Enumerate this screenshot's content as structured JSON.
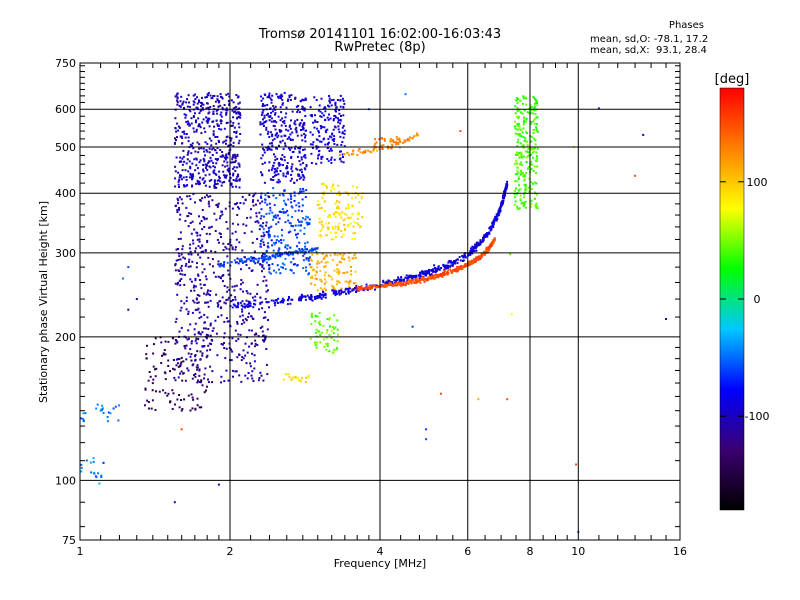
{
  "header": {
    "title_line1": "Tromsø 20141101 16:02:00-16:03:43",
    "title_line2": "RwPretec (8p)",
    "stats_title": "Phases",
    "stats_line1": "mean, sd,O: -78.1, 17.2",
    "stats_line2": "mean, sd,X:  93.1, 28.4"
  },
  "colorbar": {
    "unit": "[deg]",
    "ticks": [
      {
        "value": 100,
        "label": "100"
      },
      {
        "value": 0,
        "label": "0"
      },
      {
        "value": -100,
        "label": "-100"
      }
    ],
    "range": [
      -180,
      180
    ],
    "stops": [
      "#000000",
      "#3a0070",
      "#0000ff",
      "#00c8ff",
      "#00ff00",
      "#ffff00",
      "#ff8000",
      "#ff0000"
    ]
  },
  "chart_data": {
    "type": "scatter",
    "title": "Tromsø 20141101 16:02:00-16:03:43",
    "subtitle": "RwPretec (8p)",
    "xlabel": "Frequency [MHz]",
    "ylabel": "Stationary phase Virtual Height [km]",
    "x_scale": "log",
    "y_scale": "log",
    "xlim": [
      1,
      16
    ],
    "ylim": [
      75,
      750
    ],
    "x_ticks": [
      {
        "value": 1,
        "label": "1"
      },
      {
        "value": 2,
        "label": "2"
      },
      {
        "value": 4,
        "label": "4"
      },
      {
        "value": 6,
        "label": "6"
      },
      {
        "value": 8,
        "label": "8"
      },
      {
        "value": 10,
        "label": "10"
      },
      {
        "value": 16,
        "label": "16"
      }
    ],
    "y_ticks": [
      {
        "value": 750,
        "label": "750"
      },
      {
        "value": 600,
        "label": "600"
      },
      {
        "value": 500,
        "label": "500"
      },
      {
        "value": 400,
        "label": "400"
      },
      {
        "value": 300,
        "label": "300"
      },
      {
        "value": 200,
        "label": "200"
      },
      {
        "value": 100,
        "label": "100"
      },
      {
        "value": 75,
        "label": "75"
      }
    ],
    "grid": true,
    "color_variable": "phase [deg]",
    "clusters": [
      {
        "f": [
          1.55,
          2.1
        ],
        "h": [
          410,
          650
        ],
        "phase": -100,
        "n": 500
      },
      {
        "f": [
          2.3,
          2.85
        ],
        "h": [
          420,
          650
        ],
        "phase": -95,
        "n": 320
      },
      {
        "f": [
          2.9,
          3.4
        ],
        "h": [
          460,
          640
        ],
        "phase": -90,
        "n": 160
      },
      {
        "f": [
          1.55,
          2.4
        ],
        "h": [
          160,
          400
        ],
        "phase": -110,
        "n": 620
      },
      {
        "f": [
          1.35,
          1.8
        ],
        "h": [
          140,
          200
        ],
        "phase": -140,
        "n": 110
      },
      {
        "f": [
          2.3,
          2.9
        ],
        "h": [
          270,
          410
        ],
        "phase": -60,
        "n": 220
      },
      {
        "f": [
          3.0,
          3.7
        ],
        "h": [
          320,
          420
        ],
        "phase": 90,
        "n": 130
      },
      {
        "f": [
          2.9,
          3.6
        ],
        "h": [
          250,
          300
        ],
        "phase": 110,
        "n": 110
      },
      {
        "f": [
          2.9,
          3.3
        ],
        "h": [
          185,
          225
        ],
        "phase": 45,
        "n": 60
      },
      {
        "f": [
          2.55,
          2.9
        ],
        "h": [
          160,
          168
        ],
        "phase": 95,
        "n": 20
      },
      {
        "f": [
          7.45,
          8.3
        ],
        "h": [
          370,
          640
        ],
        "phase": 40,
        "n": 260
      },
      {
        "f": [
          3.9,
          4.4
        ],
        "h": [
          495,
          525
        ],
        "phase": 130,
        "n": 25
      },
      {
        "f": [
          1.0,
          1.12
        ],
        "h": [
          98,
          112
        ],
        "phase": -45,
        "n": 18
      },
      {
        "f": [
          1.0,
          1.2
        ],
        "h": [
          133,
          145
        ],
        "phase": -45,
        "n": 22
      }
    ],
    "traces": [
      {
        "f": [
          2.0,
          2.5,
          3.0,
          3.5,
          4.0,
          4.5,
          5.0,
          5.5,
          6.0,
          6.3,
          6.6,
          6.9,
          7.05,
          7.2
        ],
        "h": [
          232,
          237,
          243,
          250,
          257,
          265,
          273,
          283,
          298,
          312,
          332,
          360,
          385,
          420
        ],
        "phase": -90,
        "n": 600,
        "spread": 0.025
      },
      {
        "f": [
          3.6,
          4.0,
          4.5,
          5.0,
          5.5,
          6.0,
          6.3,
          6.6,
          6.8
        ],
        "h": [
          252,
          255,
          259,
          265,
          273,
          283,
          292,
          305,
          320
        ],
        "phase": 150,
        "n": 450,
        "spread": 0.015
      },
      {
        "f": [
          1.9,
          2.3,
          2.7,
          3.0
        ],
        "h": [
          283,
          292,
          300,
          305
        ],
        "phase": -60,
        "n": 100,
        "spread": 0.02
      },
      {
        "f": [
          3.2,
          3.8,
          4.3,
          4.8
        ],
        "h": [
          480,
          492,
          505,
          530
        ],
        "phase": 125,
        "n": 60,
        "spread": 0.02
      }
    ],
    "scattered": [
      {
        "f": 1.55,
        "h": 90,
        "phase": -100
      },
      {
        "f": 1.9,
        "h": 98,
        "phase": -100
      },
      {
        "f": 1.6,
        "h": 128,
        "phase": 150
      },
      {
        "f": 4.95,
        "h": 122,
        "phase": -60
      },
      {
        "f": 4.95,
        "h": 128,
        "phase": -60
      },
      {
        "f": 9.9,
        "h": 108,
        "phase": 150
      },
      {
        "f": 10.0,
        "h": 78,
        "phase": -60
      },
      {
        "f": 15.0,
        "h": 218,
        "phase": -110
      },
      {
        "f": 13.5,
        "h": 530,
        "phase": -100
      },
      {
        "f": 11.0,
        "h": 602,
        "phase": -100
      },
      {
        "f": 13.0,
        "h": 435,
        "phase": 150
      },
      {
        "f": 7.3,
        "h": 298,
        "phase": 40
      },
      {
        "f": 7.35,
        "h": 223,
        "phase": 80
      },
      {
        "f": 7.2,
        "h": 148,
        "phase": 150
      },
      {
        "f": 4.65,
        "h": 210,
        "phase": -60
      },
      {
        "f": 5.3,
        "h": 152,
        "phase": 150
      },
      {
        "f": 6.3,
        "h": 148,
        "phase": 110
      },
      {
        "f": 1.25,
        "h": 228,
        "phase": -110
      },
      {
        "f": 1.3,
        "h": 240,
        "phase": -110
      },
      {
        "f": 1.22,
        "h": 265,
        "phase": -45
      },
      {
        "f": 1.25,
        "h": 280,
        "phase": -60
      },
      {
        "f": 5.4,
        "h": 275,
        "phase": 150
      },
      {
        "f": 5.8,
        "h": 540,
        "phase": 150
      },
      {
        "f": 3.8,
        "h": 600,
        "phase": -60
      },
      {
        "f": 4.5,
        "h": 645,
        "phase": -45
      },
      {
        "f": 9.8,
        "h": 500,
        "phase": 60
      }
    ]
  }
}
